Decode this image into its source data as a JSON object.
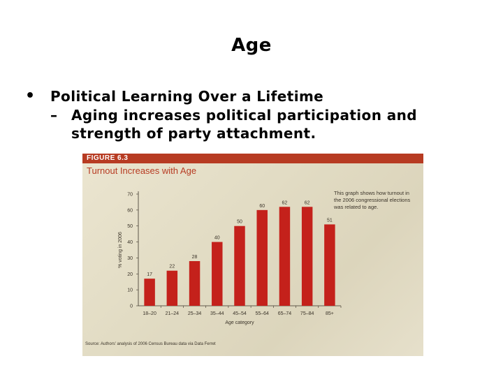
{
  "slide": {
    "title": "Age",
    "bullet": "Political Learning Over a Lifetime",
    "sub_dash": "–",
    "sub_bullet": "Aging increases political participation and strength of party attachment."
  },
  "figure": {
    "label": "FIGURE 6.3",
    "title": "Turnout Increases with Age",
    "caption": "This graph shows how turnout in the 2006 congressional elections was related to age.",
    "source": "Source: Authors' analysis of 2006 Census Bureau data via Data Ferret",
    "bar_color": "#c4211b",
    "header_color": "#b73b22"
  },
  "chart_data": {
    "type": "bar",
    "categories": [
      "18–20",
      "21–24",
      "25–34",
      "35–44",
      "45–54",
      "55–64",
      "65–74",
      "75–84",
      "85+"
    ],
    "values": [
      17,
      22,
      28,
      40,
      50,
      60,
      62,
      62,
      51
    ],
    "xlabel": "Age category",
    "ylabel": "% voting in 2006",
    "ylim": [
      0,
      70
    ],
    "yticks": [
      0,
      10,
      20,
      30,
      40,
      50,
      60,
      70
    ],
    "grid": false
  }
}
